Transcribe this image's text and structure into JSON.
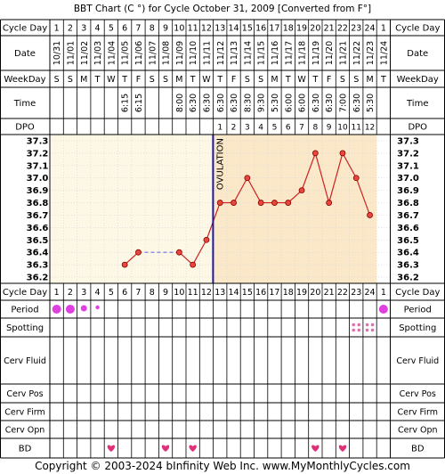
{
  "title": "BBT Chart (C °) for Cycle October 31, 2009  [Converted from F°]",
  "footer": "Copyright © 2003-2024 bInfinity Web Inc.    www.MyMonthlyCycles.com",
  "row_labels": {
    "cycle_day": "Cycle Day",
    "date": "Date",
    "weekday": "WeekDay",
    "time": "Time",
    "dpo": "DPO",
    "period": "Period",
    "spotting": "Spotting",
    "cerv_fluid": "Cerv Fluid",
    "cerv_pos": "Cerv Pos",
    "cerv_firm": "Cerv Firm",
    "cerv_opn": "Cerv Opn",
    "bd": "BD"
  },
  "ovulation_label": "OVULATION",
  "colors": {
    "pre_ovulation_bg": "#fdf8e6",
    "post_ovulation_bg": "#fbe8c8",
    "line": "#cc2222",
    "point": "#e8483c",
    "cover_line": "#7070e0",
    "ovulation_line": "#1a1aa0",
    "period_dot": "#e040e0",
    "spotting_dot": "#e070b0",
    "heart": "#e0307a",
    "grid": "#d8d8d8"
  },
  "cycle_days": [
    "1",
    "2",
    "3",
    "4",
    "5",
    "6",
    "7",
    "8",
    "9",
    "10",
    "11",
    "12",
    "13",
    "14",
    "15",
    "16",
    "17",
    "18",
    "19",
    "20",
    "21",
    "22",
    "23",
    "24",
    "1"
  ],
  "dates": [
    "10/31",
    "11/01",
    "11/02",
    "11/03",
    "11/04",
    "11/05",
    "11/06",
    "11/07",
    "11/08",
    "11/09",
    "11/10",
    "11/11",
    "11/12",
    "11/13",
    "11/14",
    "11/15",
    "11/16",
    "11/17",
    "11/18",
    "11/19",
    "11/20",
    "11/21",
    "11/22",
    "11/23",
    "11/24"
  ],
  "weekdays": [
    "S",
    "S",
    "M",
    "T",
    "W",
    "T",
    "F",
    "S",
    "S",
    "M",
    "T",
    "W",
    "T",
    "F",
    "S",
    "S",
    "M",
    "T",
    "W",
    "T",
    "F",
    "S",
    "S",
    "M",
    "T"
  ],
  "times": [
    "",
    "",
    "",
    "",
    "",
    "6:15",
    "6:15",
    "",
    "",
    "8:00",
    "6:30",
    "6:30",
    "6:30",
    "6:30",
    "8:30",
    "9:30",
    "5:30",
    "6:00",
    "6:00",
    "6:30",
    "6:30",
    "7:00",
    "6:30",
    "5:30",
    ""
  ],
  "dpo": [
    "",
    "",
    "",
    "",
    "",
    "",
    "",
    "",
    "",
    "",
    "",
    "",
    "1",
    "2",
    "3",
    "4",
    "5",
    "6",
    "7",
    "8",
    "9",
    "10",
    "11",
    "12",
    ""
  ],
  "period_icons": [
    "large",
    "large",
    "medium",
    "small",
    "",
    "",
    "",
    "",
    "",
    "",
    "",
    "",
    "",
    "",
    "",
    "",
    "",
    "",
    "",
    "",
    "",
    "",
    "",
    "",
    "large"
  ],
  "spotting_icons": [
    "",
    "",
    "",
    "",
    "",
    "",
    "",
    "",
    "",
    "",
    "",
    "",
    "",
    "",
    "",
    "",
    "",
    "",
    "",
    "",
    "",
    "",
    "yes",
    "yes",
    ""
  ],
  "bd_icons": [
    "",
    "",
    "",
    "",
    "heart",
    "",
    "",
    "",
    "heart",
    "",
    "heart",
    "",
    "",
    "",
    "",
    "",
    "",
    "",
    "",
    "heart",
    "",
    "heart",
    "",
    "",
    ""
  ],
  "y_ticks": [
    "37.3",
    "37.2",
    "37.1",
    "37.0",
    "36.9",
    "36.8",
    "36.7",
    "36.6",
    "36.5",
    "36.4",
    "36.3",
    "36.2"
  ],
  "chart_data": {
    "type": "line",
    "title": "BBT Chart (C °) for Cycle October 31, 2009  [Converted from F°]",
    "xlabel": "Cycle Day",
    "ylabel": "",
    "ylim": [
      36.2,
      37.3
    ],
    "x": [
      6,
      7,
      10,
      11,
      12,
      13,
      14,
      15,
      16,
      17,
      18,
      19,
      20,
      21,
      22,
      23,
      24
    ],
    "series": [
      {
        "values": [
          36.3,
          36.4,
          36.4,
          36.3,
          36.5,
          36.8,
          36.8,
          37.0,
          36.8,
          36.8,
          36.8,
          36.9,
          37.2,
          36.8,
          37.2,
          37.0,
          36.7
        ]
      }
    ],
    "cover_line": {
      "value": 36.4,
      "from_day": 7,
      "to_day": 10
    },
    "ovulation_day": 12,
    "grid": true
  }
}
